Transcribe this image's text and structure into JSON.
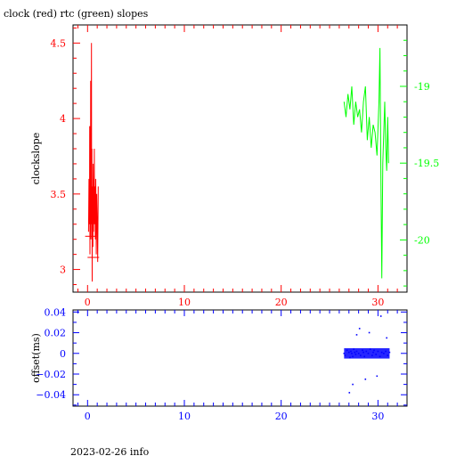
{
  "title": "clock (red) rtc (green) slopes",
  "footer": "2023-02-26 info",
  "colors": {
    "clock": "#ff0000",
    "rtc": "#00ff00",
    "offset": "#0000ff",
    "axis": "#000000"
  },
  "chart_data": [
    {
      "type": "line",
      "title": "clock (red) rtc (green) slopes",
      "xlabel": "",
      "ylabel": "clockslope",
      "xlim": [
        -1.5,
        33
      ],
      "x_ticks": [
        0,
        10,
        20,
        30
      ],
      "x_tick_labels": [
        "0",
        "10",
        "20",
        "30"
      ],
      "ylim_left": [
        2.85,
        4.62
      ],
      "left_ticks": [
        3,
        3.5,
        4,
        4.5
      ],
      "left_tick_labels": [
        "3",
        "3.5",
        "4",
        "4.5"
      ],
      "ylim_right": [
        -20.34,
        -18.6
      ],
      "right_ticks": [
        -19,
        -19.5,
        -20
      ],
      "right_tick_labels": [
        "-19",
        "-19.5",
        "-20"
      ],
      "series": [
        {
          "color": "#ff0000",
          "axis": "left",
          "x": [
            0.1,
            0.15,
            0.2,
            0.22,
            0.25,
            0.28,
            0.3,
            0.32,
            0.35,
            0.38,
            0.4,
            0.42,
            0.45,
            0.48,
            0.5,
            0.52,
            0.55,
            0.58,
            0.6,
            0.62,
            0.65,
            0.68,
            0.7,
            0.72,
            0.75,
            0.78,
            0.8,
            0.85,
            0.9,
            0.95,
            1.0,
            1.05,
            1.1
          ],
          "y": [
            3.25,
            3.6,
            3.3,
            3.95,
            3.1,
            3.7,
            3.4,
            4.25,
            3.2,
            3.65,
            4.5,
            3.3,
            3.8,
            2.92,
            3.55,
            3.35,
            3.15,
            3.7,
            3.5,
            3.25,
            3.6,
            3.4,
            3.8,
            3.3,
            3.55,
            3.45,
            3.2,
            3.6,
            3.1,
            3.5,
            3.3,
            3.05,
            3.55
          ]
        },
        {
          "color": "#00ff00",
          "axis": "right",
          "x": [
            26.5,
            26.7,
            26.9,
            27.1,
            27.3,
            27.5,
            27.7,
            27.9,
            28.1,
            28.3,
            28.5,
            28.7,
            28.9,
            29.1,
            29.3,
            29.5,
            29.7,
            29.9,
            30.1,
            30.2,
            30.3,
            30.4,
            30.5,
            30.6,
            30.7,
            30.8,
            30.9,
            31.0,
            31.1
          ],
          "y": [
            -19.1,
            -19.2,
            -19.05,
            -19.15,
            -19.0,
            -19.25,
            -19.1,
            -19.2,
            -19.15,
            -19.3,
            -19.1,
            -19.0,
            -19.35,
            -19.2,
            -19.4,
            -19.25,
            -19.3,
            -19.45,
            -19.1,
            -18.75,
            -19.6,
            -20.25,
            -19.5,
            -19.3,
            -19.1,
            -19.4,
            -19.55,
            -19.2,
            -19.5
          ]
        }
      ]
    },
    {
      "type": "scatter",
      "xlabel": "",
      "ylabel": "offset(ms)",
      "xlim": [
        -1.5,
        33
      ],
      "x_ticks": [
        0,
        10,
        20,
        30
      ],
      "x_tick_labels": [
        "0",
        "10",
        "20",
        "30"
      ],
      "ylim": [
        -0.051,
        0.042
      ],
      "y_ticks": [
        0.04,
        0.02,
        0,
        -0.02,
        -0.04
      ],
      "y_tick_labels": [
        "0.04",
        "0.02",
        "0",
        "−0.02",
        "−0.04"
      ],
      "series": [
        {
          "color": "#0000ff",
          "x": [
            26.5,
            26.6,
            26.8,
            27.0,
            27.1,
            27.2,
            27.3,
            27.4,
            27.5,
            27.6,
            27.7,
            27.8,
            28.0,
            28.2,
            28.4,
            28.5,
            28.6,
            28.8,
            29.0,
            29.2,
            29.4,
            29.5,
            29.6,
            29.8,
            30.0,
            30.2,
            30.4,
            30.6,
            30.8,
            31.0,
            31.2,
            27.05,
            27.4,
            28.1,
            29.1,
            30.3,
            28.7,
            27.8,
            29.9,
            30.9
          ],
          "y": [
            0.0,
            -0.002,
            0.003,
            0.001,
            -0.004,
            0.002,
            0.0,
            -0.003,
            0.004,
            0.001,
            -0.001,
            0.002,
            0.0,
            -0.002,
            0.003,
            0.001,
            -0.003,
            0.002,
            0.0,
            0.004,
            -0.002,
            0.001,
            0.003,
            -0.001,
            0.002,
            -0.003,
            0.001,
            0.0,
            0.002,
            -0.002,
            0.001,
            -0.038,
            -0.03,
            0.024,
            0.02,
            0.036,
            -0.025,
            0.018,
            -0.022,
            0.015
          ]
        }
      ]
    }
  ]
}
